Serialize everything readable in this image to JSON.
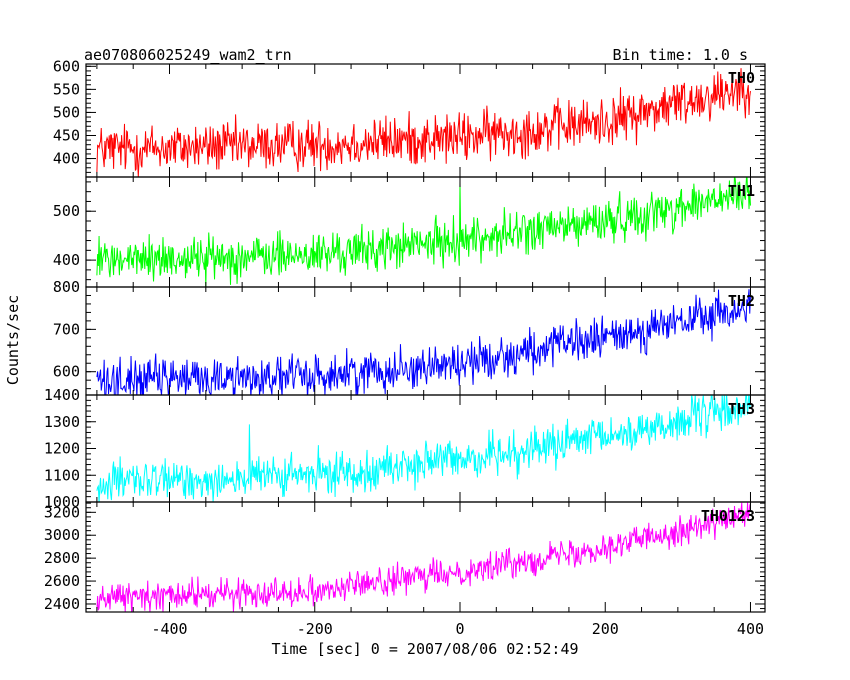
{
  "header": {
    "title": "ae070806025249_wam2_trn",
    "bin_time": "Bin time: 1.0 s"
  },
  "chart_data": {
    "type": "line",
    "xlabel": "Time [sec] 0 = 2007/08/06 02:52:49",
    "ylabel": "Counts/sec",
    "xlim": [
      -515,
      420
    ],
    "xticks": [
      -400,
      -200,
      0,
      200,
      400
    ],
    "x_range": [
      -500,
      400
    ],
    "bin_time": 1.0,
    "panels": [
      {
        "name": "TH0",
        "color": "#ff0000",
        "ylim": [
          360,
          605
        ],
        "yticks": [
          400,
          450,
          500,
          550,
          600
        ],
        "trend": [
          [
            -500,
            420
          ],
          [
            -200,
            430
          ],
          [
            0,
            445
          ],
          [
            200,
            480
          ],
          [
            400,
            560
          ]
        ],
        "noise_amplitude": 60,
        "spikes": []
      },
      {
        "name": "TH1",
        "color": "#00ff00",
        "ylim": [
          345,
          570
        ],
        "yticks": [
          400,
          500
        ],
        "trend": [
          [
            -500,
            400
          ],
          [
            -200,
            410
          ],
          [
            0,
            440
          ],
          [
            200,
            480
          ],
          [
            400,
            535
          ]
        ],
        "noise_amplitude": 50,
        "spikes": [
          [
            0,
            560
          ]
        ]
      },
      {
        "name": "TH2",
        "color": "#0000ff",
        "ylim": [
          545,
          800
        ],
        "yticks": [
          600,
          700,
          800
        ],
        "trend": [
          [
            -500,
            580
          ],
          [
            -200,
            590
          ],
          [
            0,
            620
          ],
          [
            200,
            680
          ],
          [
            400,
            750
          ]
        ],
        "noise_amplitude": 55,
        "spikes": []
      },
      {
        "name": "TH3",
        "color": "#00ffff",
        "ylim": [
          1000,
          1400
        ],
        "yticks": [
          1000,
          1100,
          1200,
          1300,
          1400
        ],
        "trend": [
          [
            -500,
            1070
          ],
          [
            -200,
            1100
          ],
          [
            0,
            1160
          ],
          [
            200,
            1240
          ],
          [
            400,
            1360
          ]
        ],
        "noise_amplitude": 85,
        "spikes": [
          [
            -290,
            1290
          ]
        ]
      },
      {
        "name": "TH0123",
        "color": "#ff00ff",
        "ylim": [
          2330,
          3290
        ],
        "yticks": [
          2400,
          2600,
          2800,
          3000,
          3200
        ],
        "trend": [
          [
            -500,
            2450
          ],
          [
            -200,
            2520
          ],
          [
            0,
            2680
          ],
          [
            200,
            2900
          ],
          [
            400,
            3180
          ]
        ],
        "noise_amplitude": 140,
        "spikes": []
      }
    ]
  }
}
